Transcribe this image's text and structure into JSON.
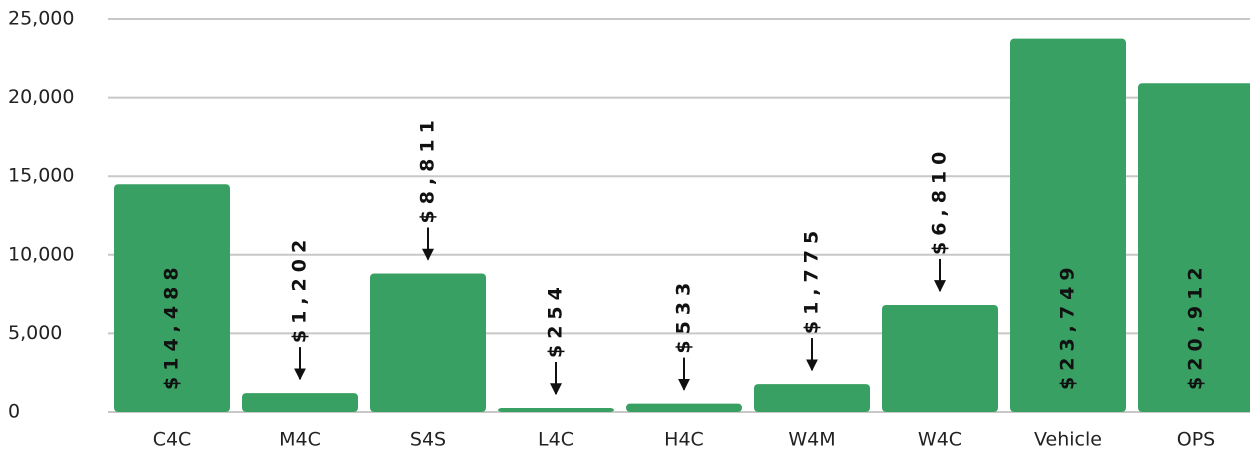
{
  "chart_data": {
    "type": "bar",
    "categories": [
      "C4C",
      "M4C",
      "S4S",
      "L4C",
      "H4C",
      "W4M",
      "W4C",
      "Vehicle",
      "OPS"
    ],
    "values": [
      14488,
      1202,
      8811,
      254,
      533,
      1775,
      6810,
      23749,
      20912
    ],
    "value_labels": [
      "$14,488",
      "$1,202",
      "$8,811",
      "$254",
      "$533",
      "$1,775",
      "$6,810",
      "$23,749",
      "$20,912"
    ],
    "color": "#38a062",
    "ylim": [
      0,
      25000
    ],
    "yticks": [
      0,
      {
        "value": 5000,
        "label": "5,000"
      },
      {
        "value": 10000,
        "label": "10,000"
      },
      {
        "value": 15000,
        "label": "15,000"
      },
      {
        "value": 20000,
        "label": "20,000"
      },
      {
        "value": 25000,
        "label": "25,000"
      }
    ],
    "grid": true
  }
}
